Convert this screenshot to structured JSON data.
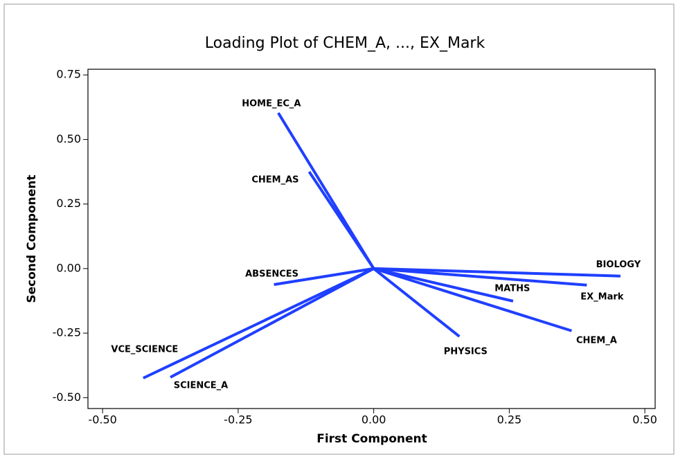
{
  "chart_data": {
    "type": "loading",
    "title": "Loading Plot of CHEM_A, ..., EX_Mark",
    "xlabel": "First Component",
    "ylabel": "Second Component",
    "labels": [
      "HOME_EC_A",
      "CHEM_AS",
      "ABSENCES",
      "VCE_SCIENCE",
      "SCIENCE_A",
      "PHYSICS",
      "MATHS",
      "CHEM_A",
      "EX_Mark",
      "BIOLOGY"
    ],
    "x": [
      -0.176,
      -0.119,
      -0.184,
      -0.425,
      -0.375,
      0.158,
      0.257,
      0.365,
      0.393,
      0.455
    ],
    "y": [
      0.603,
      0.375,
      -0.062,
      -0.424,
      -0.421,
      -0.263,
      -0.126,
      -0.241,
      -0.064,
      -0.029
    ],
    "color": "#1f3fff",
    "xlim": [
      -0.527,
      0.519
    ],
    "ylim": [
      -0.542,
      0.772
    ],
    "xticks": [
      {
        "value": -0.5,
        "label": "-0.50"
      },
      {
        "value": -0.25,
        "label": "-0.25"
      },
      {
        "value": 0,
        "label": "0.00"
      },
      {
        "value": 0.25,
        "label": "0.25"
      },
      {
        "value": 0.5,
        "label": "0.50"
      }
    ],
    "yticks": [
      {
        "value": -0.5,
        "label": "-0.50"
      },
      {
        "value": -0.25,
        "label": "-0.25"
      },
      {
        "value": 0,
        "label": "0.00"
      },
      {
        "value": 0.25,
        "label": "0.25"
      },
      {
        "value": 0.5,
        "label": "0.50"
      },
      {
        "value": 0.75,
        "label": "0.75"
      }
    ]
  }
}
